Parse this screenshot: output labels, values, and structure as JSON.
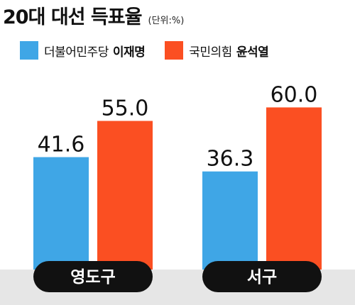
{
  "header": {
    "title": "20대 대선 득표율",
    "unit": "(단위:%)"
  },
  "legend": [
    {
      "party": "더불어민주당",
      "candidate": "이재명",
      "color": "#3fa6e6"
    },
    {
      "party": "국민의힘",
      "candidate": "윤석열",
      "color": "#fb4f22"
    }
  ],
  "chart_data": {
    "type": "bar",
    "categories": [
      "영도구",
      "서구"
    ],
    "series": [
      {
        "name": "더불어민주당 이재명",
        "values": [
          41.6,
          36.3
        ],
        "labels": [
          "41.6",
          "36.3"
        ],
        "color": "#3fa6e6"
      },
      {
        "name": "국민의힘 윤석열",
        "values": [
          55.0,
          60.0
        ],
        "labels": [
          "55.0",
          "60.0"
        ],
        "color": "#fb4f22"
      }
    ],
    "title": "20대 대선 득표율",
    "ylabel": "",
    "ylim": [
      0,
      63
    ],
    "grid": false,
    "legend_position": "top-left"
  }
}
